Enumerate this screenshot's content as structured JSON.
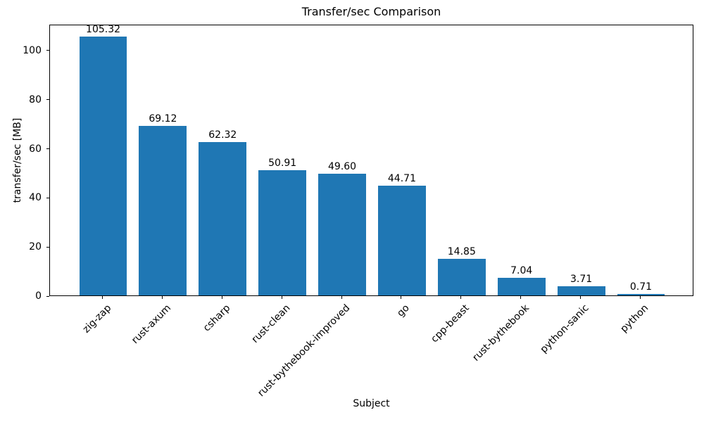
{
  "chart_data": {
    "type": "bar",
    "title": "Transfer/sec Comparison",
    "xlabel": "Subject",
    "ylabel": "transfer/sec [MB]",
    "categories": [
      "zig-zap",
      "rust-axum",
      "csharp",
      "rust-clean",
      "rust-bythebook-improved",
      "go",
      "cpp-beast",
      "rust-bythebook",
      "python-sanic",
      "python"
    ],
    "values": [
      105.32,
      69.12,
      62.32,
      50.91,
      49.6,
      44.71,
      14.85,
      7.04,
      3.71,
      0.71
    ],
    "value_labels": [
      "105.32",
      "69.12",
      "62.32",
      "50.91",
      "49.60",
      "44.71",
      "14.85",
      "7.04",
      "3.71",
      "0.71"
    ],
    "yticks": [
      0,
      20,
      40,
      60,
      80,
      100
    ],
    "ylim": [
      0,
      110.586
    ],
    "bar_color": "#1f77b4",
    "bar_width_data_units": 0.8,
    "grid": false,
    "x_tick_rotation_deg": 45,
    "legend_position": "none"
  }
}
